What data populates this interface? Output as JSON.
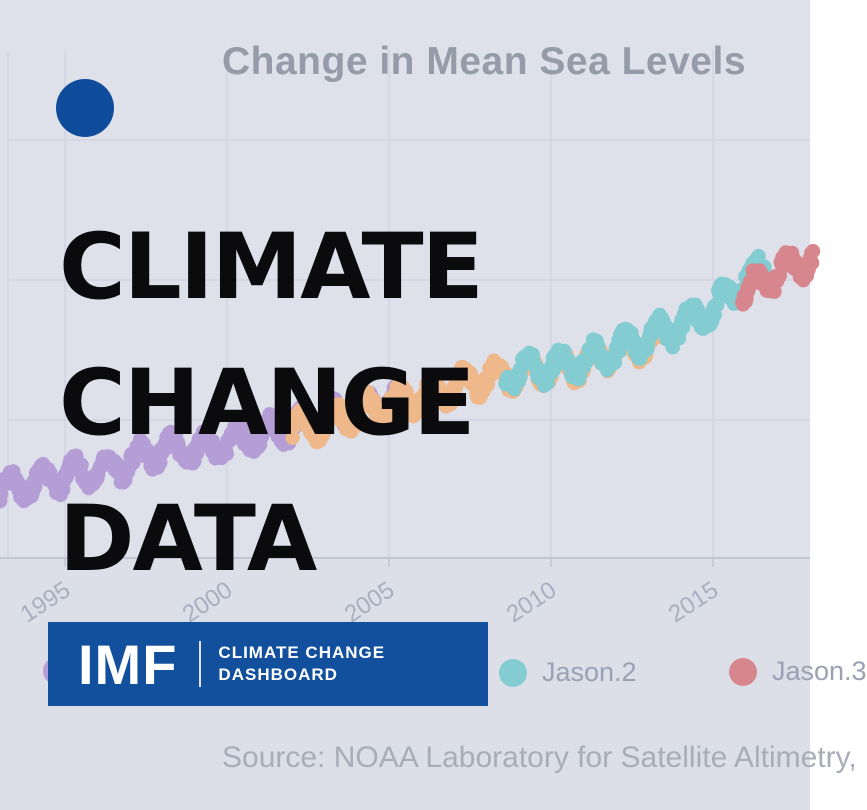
{
  "title": "Change in Mean Sea Levels",
  "headline": {
    "lines": [
      "CLIMATE",
      "CHANGE",
      "DATA"
    ]
  },
  "brand": {
    "logo_text": "IMF",
    "tagline_line1": "CLIMATE CHANGE",
    "tagline_line2": "DASHBOARD"
  },
  "legend": {
    "items": [
      {
        "label": "",
        "color": "#b59dd6"
      },
      {
        "label": "Jason.2",
        "color": "#82ccd2"
      },
      {
        "label": "Jason.3",
        "color": "#d8868e"
      }
    ]
  },
  "source_text": "Source: NOAA Laboratory for Satellite Altimetry,",
  "colors": {
    "background": "#dee0ea",
    "below_axis": "#dadce6",
    "gridline": "#d2d4e1",
    "axis_line": "#c2c5d3",
    "title_text": "#959ba9",
    "tick_text": "#a9afc0",
    "legend_text": "#9aa1b3",
    "source_text": "#a8adba",
    "headline_text": "#0b0b0d",
    "banner_bg": "#124f9c",
    "banner_text": "#ffffff",
    "accent_dot": "#0f4c9c"
  },
  "chart_data": {
    "type": "scatter",
    "title": "Change in Mean Sea Levels",
    "xlabel": "",
    "ylabel": "",
    "x_ticks": [
      1995,
      2000,
      2005,
      2010,
      2015
    ],
    "xlim": [
      1993,
      2018.1
    ],
    "ylim_mm": [
      -40,
      85
    ],
    "y_gridlines_mm": [
      0,
      40,
      80
    ],
    "grid": true,
    "legend_position": "bottom",
    "seasonal_amplitude_mm": 3.4,
    "series": [
      {
        "name": "purple series (legend hidden behind banner)",
        "color": "#b59dd6",
        "years": [
          1993,
          1994,
          1995,
          1996,
          1997,
          1998,
          1999,
          2000,
          2001,
          2002,
          2003,
          2004,
          2005,
          2005.6
        ],
        "mm": [
          -20,
          -18,
          -16,
          -14.5,
          -12,
          -8.5,
          -8.5,
          -6.5,
          -4.5,
          -2,
          0,
          2.5,
          5,
          6
        ]
      },
      {
        "name": "orange series (legend hidden behind banner)",
        "color": "#eeb88b",
        "years": [
          2002,
          2003,
          2004,
          2005,
          2006,
          2007,
          2008,
          2009,
          2010,
          2011,
          2012,
          2013,
          2013.6
        ],
        "mm": [
          -3,
          -0.5,
          2,
          4.5,
          7,
          9.5,
          12,
          13.5,
          14.5,
          16,
          19,
          22.5,
          24
        ]
      },
      {
        "name": "Jason.2",
        "color": "#82ccd2",
        "years": [
          2008.6,
          2009,
          2010,
          2011,
          2012,
          2013,
          2014,
          2015,
          2016,
          2016.6
        ],
        "mm": [
          13,
          14,
          15.5,
          16.5,
          20,
          23.5,
          27,
          31.5,
          40,
          44
        ]
      },
      {
        "name": "Jason.3",
        "color": "#d8868e",
        "years": [
          2015.9,
          2016.5,
          2017,
          2017.6,
          2018.1
        ],
        "mm": [
          36,
          39,
          42,
          44.5,
          46.5
        ]
      }
    ]
  }
}
